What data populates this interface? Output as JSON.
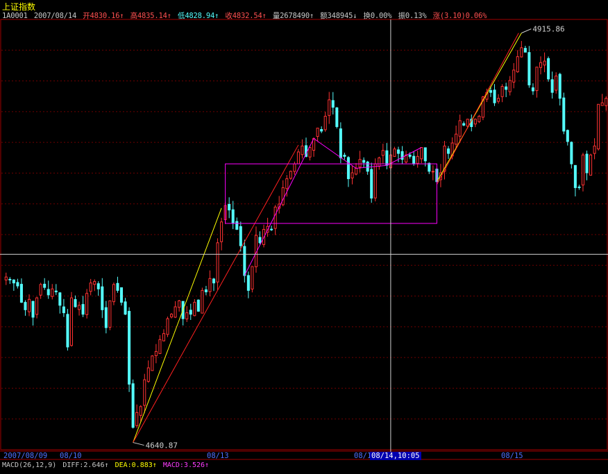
{
  "header": {
    "index_name": "上证指数",
    "code": "1A0001",
    "date": "2007/08/14",
    "open": "开4830.16↑",
    "high": "高4835.14↑",
    "low": "低4828.94↑",
    "close": "收4832.54↑",
    "volume": "量2678490↑",
    "amount": "额348945↓",
    "turnover": "换0.00%",
    "amplitude": "振0.13%",
    "change": "涨(3.10)0.06%"
  },
  "annotations": {
    "high_label": "4915.86",
    "low_label": "4640.87"
  },
  "x_axis": {
    "labels": [
      "2007/08/09",
      "08/10",
      "08/13",
      "08/1",
      "08/14,10:05",
      "08/15"
    ]
  },
  "macd": {
    "name": "MACD(26,12,9)",
    "diff": "DIFF:2.646↑",
    "dea": "DEA:0.883↑",
    "macd": "MACD:3.526↑"
  },
  "colors": {
    "up": "#ff3232",
    "down": "#54fcfc",
    "frame": "#a00000",
    "pattern": "#ff00ff",
    "trend_yellow": "#ffff00",
    "trend_red": "#ff2020",
    "crosshair": "#d0d0d0"
  },
  "chart_data": {
    "type": "candlestick",
    "interval": "intraday",
    "ylim": [
      4636,
      4925
    ],
    "series": [
      {
        "name": "上证指数",
        "close": [
          4752,
          4750,
          4748,
          4746,
          4735,
          4730,
          4737,
          4725,
          4738,
          4747,
          4745,
          4740,
          4744,
          4742,
          4733,
          4728,
          4705,
          4738,
          4732,
          4733,
          4727,
          4741,
          4748,
          4749,
          4744,
          4730,
          4718,
          4736,
          4747,
          4743,
          4735,
          4727,
          4680,
          4651,
          4661,
          4665,
          4683,
          4691,
          4699,
          4702,
          4710,
          4714,
          4724,
          4727,
          4732,
          4736,
          4724,
          4728,
          4727,
          4735,
          4729,
          4743,
          4742,
          4751,
          4748,
          4775,
          4789,
          4800,
          4797,
          4788,
          4784,
          4773,
          4753,
          4743,
          4759,
          4780,
          4775,
          4784,
          4786,
          4784,
          4799,
          4801,
          4812,
          4818,
          4823,
          4828,
          4836,
          4840,
          4833,
          4839,
          4845,
          4852,
          4850,
          4860,
          4871,
          4866,
          4853,
          4832,
          4833,
          4818,
          4822,
          4825,
          4831,
          4829,
          4823,
          4805,
          4828,
          4832,
          4837,
          4827,
          4834,
          4838,
          4835,
          4831,
          4834,
          4833,
          4828,
          4833,
          4839,
          4830,
          4823,
          4823,
          4816,
          4822,
          4840,
          4835,
          4842,
          4848,
          4857,
          4854,
          4858,
          4853,
          4858,
          4860,
          4873,
          4876,
          4876,
          4869,
          4872,
          4880,
          4878,
          4884,
          4891,
          4900,
          4906,
          4903,
          4881,
          4877,
          4893,
          4896,
          4897,
          4885,
          4876,
          4887,
          4872,
          4850,
          4843,
          4828,
          4812,
          4812,
          4834,
          4822,
          4834,
          4840,
          4868,
          4869,
          4872
        ]
      }
    ]
  }
}
